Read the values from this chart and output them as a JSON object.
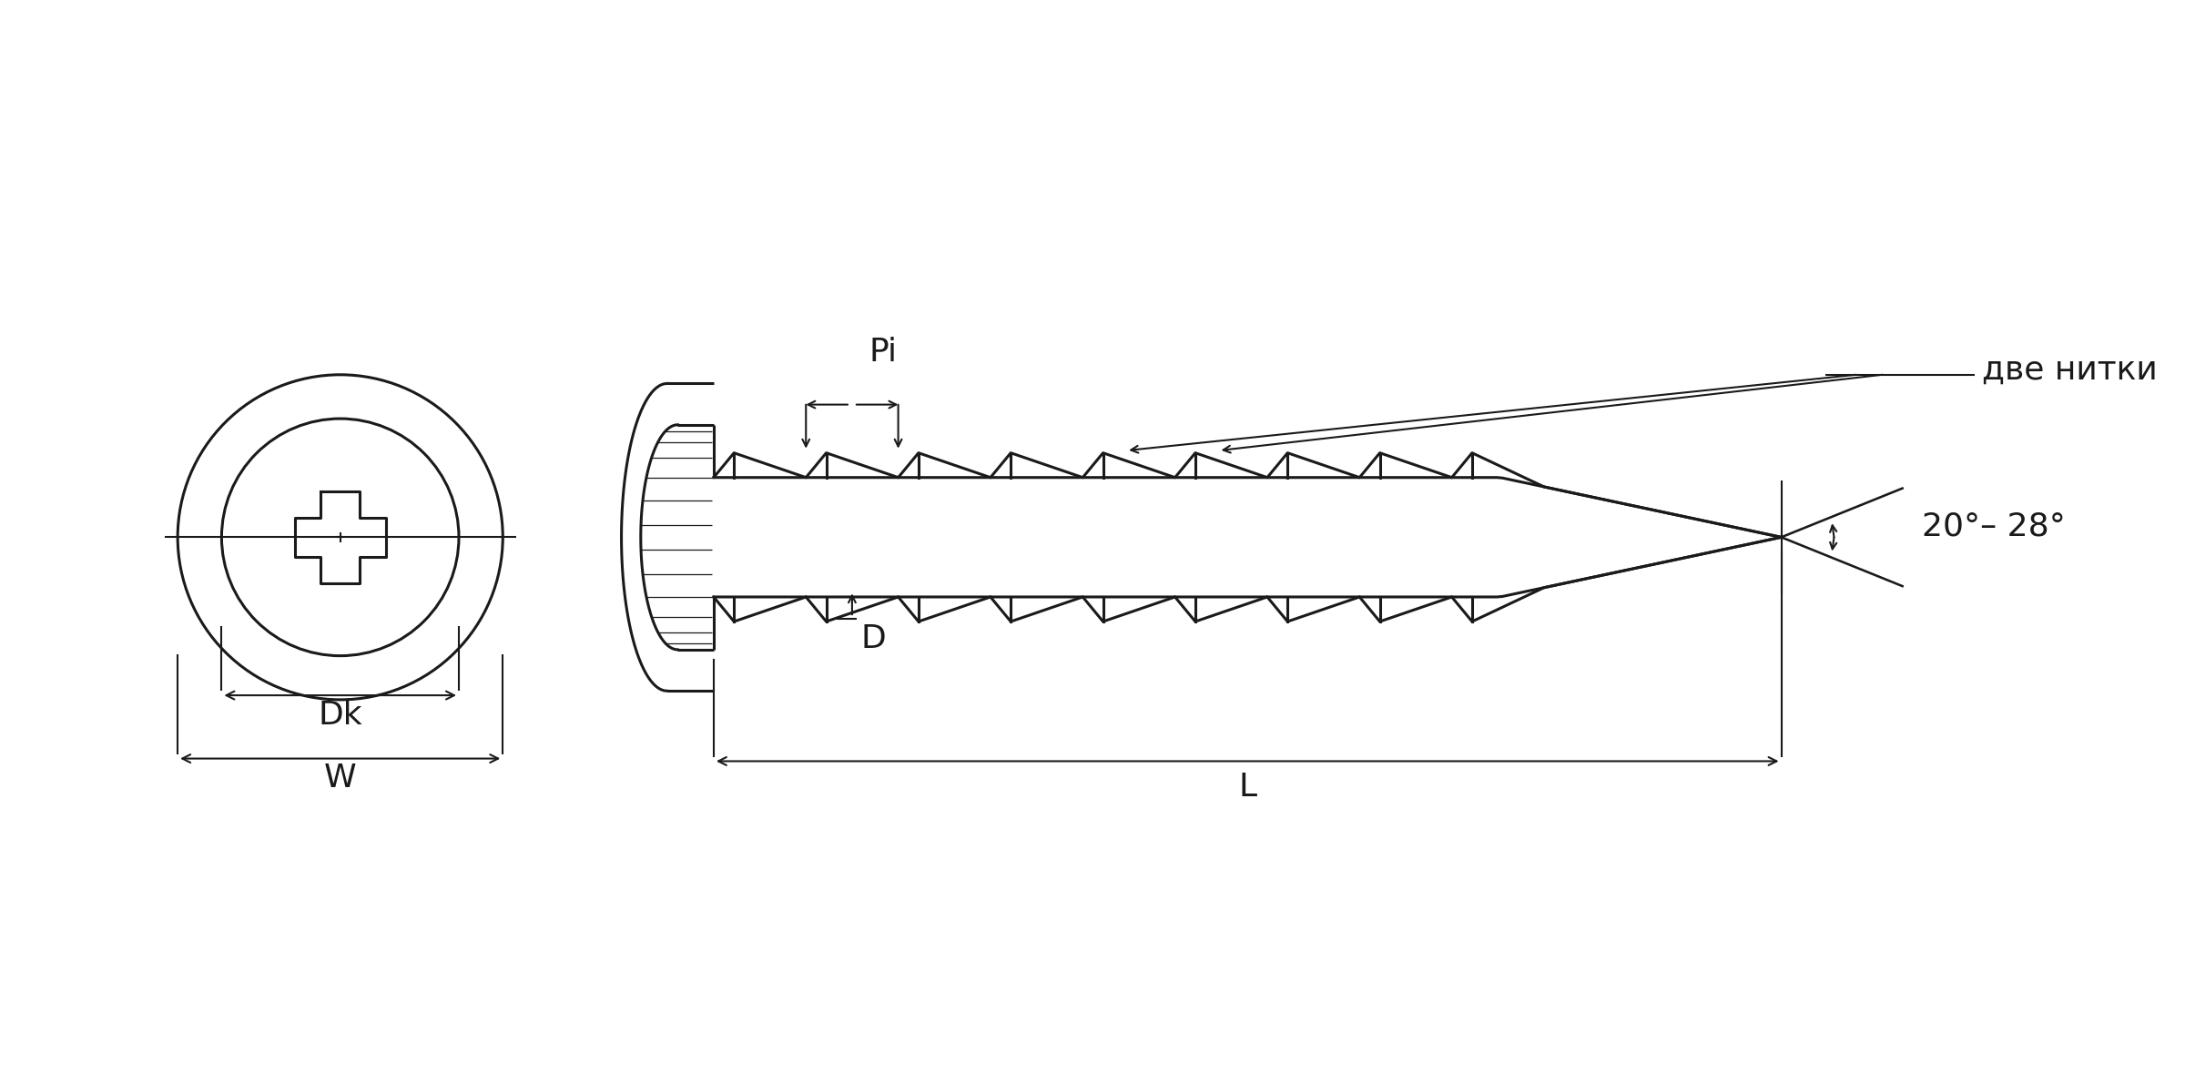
{
  "bg_color": "#ffffff",
  "line_color": "#1a1a1a",
  "lw": 2.2,
  "tlw": 1.5,
  "fig_width": 24.0,
  "fig_height": 12.0,
  "label_Dk": "Dk",
  "label_W": "W",
  "label_L": "L",
  "label_D": "D",
  "label_Pi": "Pi",
  "label_angle": "20°– 28°",
  "label_threads": "две нитки",
  "font_size": 26,
  "small_font_size": 22
}
